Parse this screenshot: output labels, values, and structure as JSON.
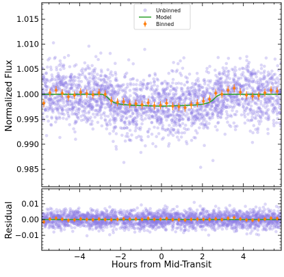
{
  "chart_data": [
    {
      "type": "scatter",
      "panel": "flux",
      "xlabel": "",
      "ylabel": "Normalized Flux",
      "xlim": [
        -5.85,
        5.85
      ],
      "ylim": [
        0.9815,
        1.0183
      ],
      "x_ticks": [
        -4,
        -2,
        0,
        2,
        4
      ],
      "y_ticks": [
        0.985,
        0.99,
        0.995,
        1.0,
        1.005,
        1.01,
        1.015
      ],
      "y_tick_labels": [
        "0.985",
        "0.990",
        "0.995",
        "1.000",
        "1.005",
        "1.010",
        "1.015"
      ],
      "legend": {
        "placement": "top-center",
        "entries": [
          {
            "label": "Unbinned",
            "marker": "circle",
            "color": "#8c7ae6"
          },
          {
            "label": "Model",
            "marker": "line",
            "color": "#2ca02c"
          },
          {
            "label": "Binned",
            "marker": "diamond",
            "color": "#ff7f0e"
          }
        ]
      },
      "unbinned": {
        "name": "Unbinned",
        "color": "#8c7ae6",
        "alpha": 0.3,
        "approx_count": 2400,
        "scatter_std": 0.003,
        "note": "individual points are random draws around the model; only the distribution is representative"
      },
      "model": {
        "name": "Model",
        "color": "#2ca02c",
        "x": [
          -5.85,
          -2.9,
          -2.7,
          -2.5,
          -2.3,
          -2.0,
          -1.5,
          0,
          1.5,
          2.0,
          2.3,
          2.5,
          2.7,
          2.9,
          5.85
        ],
        "y": [
          1.0,
          1.0,
          0.9996,
          0.9988,
          0.9983,
          0.998,
          0.9978,
          0.9976,
          0.9978,
          0.998,
          0.9983,
          0.9988,
          0.9996,
          1.0,
          1.0
        ]
      },
      "binned": {
        "name": "Binned",
        "color": "#ff7f0e",
        "x": [
          -5.75,
          -5.45,
          -5.15,
          -4.85,
          -4.55,
          -4.25,
          -3.95,
          -3.65,
          -3.35,
          -3.05,
          -2.75,
          -2.45,
          -2.15,
          -1.85,
          -1.55,
          -1.25,
          -0.95,
          -0.65,
          -0.35,
          -0.05,
          0.25,
          0.55,
          0.85,
          1.15,
          1.45,
          1.75,
          2.05,
          2.35,
          2.65,
          2.95,
          3.25,
          3.55,
          3.85,
          4.15,
          4.45,
          4.75,
          5.05,
          5.35,
          5.65
        ],
        "y": [
          0.9982,
          1.0003,
          1.0008,
          1.0002,
          0.9995,
          0.9998,
          1.0004,
          1.0001,
          0.9999,
          1.0003,
          1.0,
          0.9987,
          0.9984,
          0.9985,
          0.998,
          0.9981,
          0.9979,
          0.9983,
          0.9977,
          0.9978,
          0.9982,
          0.9976,
          0.9975,
          0.9973,
          0.9979,
          0.9982,
          0.9986,
          0.999,
          1.0002,
          1.0,
          1.0008,
          1.0012,
          1.0004,
          0.9998,
          0.9996,
          0.9997,
          1.0003,
          1.0008,
          1.0006
        ],
        "yerr": 0.0008
      }
    },
    {
      "type": "scatter",
      "panel": "residual",
      "xlabel": "Hours from Mid-Transit",
      "ylabel": "Residual",
      "xlim": [
        -5.85,
        5.85
      ],
      "ylim": [
        -0.0195,
        0.0195
      ],
      "x_ticks": [
        -4,
        -2,
        0,
        2,
        4
      ],
      "x_tick_labels": [
        "−4",
        "−2",
        "0",
        "2",
        "4"
      ],
      "y_ticks": [
        -0.01,
        0.0,
        0.01
      ],
      "y_tick_labels": [
        "−0.01",
        "0.00",
        "0.01"
      ],
      "unbinned": {
        "name": "Unbinned",
        "color": "#8c7ae6",
        "alpha": 0.3,
        "scatter_std": 0.003
      },
      "model_zero_line": {
        "y": 0.0,
        "color": "#2ca02c"
      },
      "binned": {
        "name": "Binned",
        "color": "#ff7f0e",
        "x": [
          -5.75,
          -5.45,
          -5.15,
          -4.85,
          -4.55,
          -4.25,
          -3.95,
          -3.65,
          -3.35,
          -3.05,
          -2.75,
          -2.45,
          -2.15,
          -1.85,
          -1.55,
          -1.25,
          -0.95,
          -0.65,
          -0.35,
          -0.05,
          0.25,
          0.55,
          0.85,
          1.15,
          1.45,
          1.75,
          2.05,
          2.35,
          2.65,
          2.95,
          3.25,
          3.55,
          3.85,
          4.15,
          4.45,
          4.75,
          5.05,
          5.35,
          5.65
        ],
        "y": [
          -0.0015,
          0.0003,
          0.0008,
          0.0002,
          -0.0005,
          -0.0002,
          0.0004,
          0.0001,
          -0.0001,
          0.0003,
          0.0,
          -0.0001,
          0.0001,
          0.0004,
          0.0002,
          0.0003,
          0.0001,
          0.0007,
          0.0001,
          0.0002,
          0.0006,
          0.0,
          -0.0001,
          -0.0003,
          0.0001,
          0.0002,
          0.0001,
          0.0,
          0.0004,
          0.0,
          0.0008,
          0.0012,
          0.0004,
          -0.0002,
          -0.0004,
          -0.0003,
          0.0003,
          0.0008,
          0.0006
        ],
        "yerr": 0.0008
      }
    }
  ]
}
